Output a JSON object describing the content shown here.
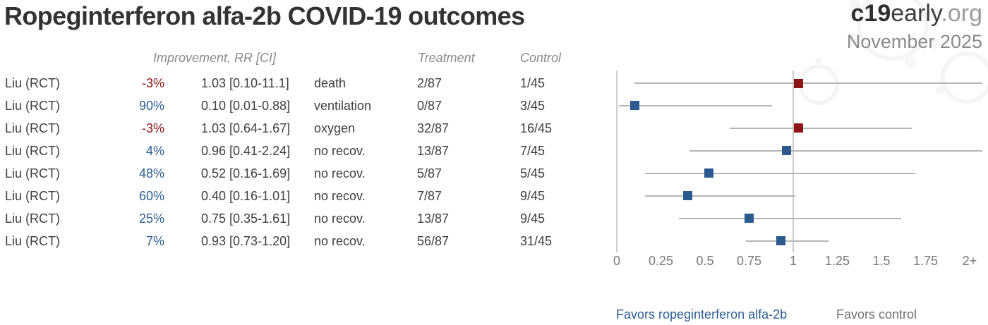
{
  "header": {
    "title": "Ropeginterferon alfa-2b COVID-19 outcomes",
    "logo_bold": "c19",
    "logo_regular": "early",
    "logo_suffix": ".org",
    "date": "November 2025"
  },
  "table": {
    "headers": {
      "improvement": "Improvement, RR [CI]",
      "treatment": "Treatment",
      "control": "Control"
    },
    "rows": [
      {
        "study": "Liu (RCT)",
        "improvement": "-3%",
        "rr_ci": "1.03 [0.10-11.1]",
        "outcome": "death",
        "treatment": "2/87",
        "control": "1/45",
        "color": "red"
      },
      {
        "study": "Liu (RCT)",
        "improvement": "90%",
        "rr_ci": "0.10 [0.01-0.88]",
        "outcome": "ventilation",
        "treatment": "0/87",
        "control": "3/45",
        "color": "blue"
      },
      {
        "study": "Liu (RCT)",
        "improvement": "-3%",
        "rr_ci": "1.03 [0.64-1.67]",
        "outcome": "oxygen",
        "treatment": "32/87",
        "control": "16/45",
        "color": "red"
      },
      {
        "study": "Liu (RCT)",
        "improvement": "4%",
        "rr_ci": "0.96 [0.41-2.24]",
        "outcome": "no recov.",
        "treatment": "13/87",
        "control": "7/45",
        "color": "blue"
      },
      {
        "study": "Liu (RCT)",
        "improvement": "48%",
        "rr_ci": "0.52 [0.16-1.69]",
        "outcome": "no recov.",
        "treatment": "5/87",
        "control": "5/45",
        "color": "blue"
      },
      {
        "study": "Liu (RCT)",
        "improvement": "60%",
        "rr_ci": "0.40 [0.16-1.01]",
        "outcome": "no recov.",
        "treatment": "7/87",
        "control": "9/45",
        "color": "blue"
      },
      {
        "study": "Liu (RCT)",
        "improvement": "25%",
        "rr_ci": "0.75 [0.35-1.61]",
        "outcome": "no recov.",
        "treatment": "13/87",
        "control": "9/45",
        "color": "blue"
      },
      {
        "study": "Liu (RCT)",
        "improvement": "7%",
        "rr_ci": "0.93 [0.73-1.20]",
        "outcome": "no recov.",
        "treatment": "56/87",
        "control": "31/45",
        "color": "blue"
      }
    ]
  },
  "chart_data": {
    "type": "forest",
    "title": "Ropeginterferon alfa-2b COVID-19 outcomes",
    "x_tick_labels": [
      "0",
      "0.25",
      "0.5",
      "0.75",
      "1",
      "1.25",
      "1.5",
      "1.75",
      "2+"
    ],
    "x_tick_values": [
      0,
      0.25,
      0.5,
      0.75,
      1,
      1.25,
      1.5,
      1.75,
      2
    ],
    "xlim": [
      0,
      2.07
    ],
    "reference_line_x": 1,
    "grid": false,
    "series": [
      {
        "study": "Liu (RCT)",
        "outcome": "death",
        "rr": 1.03,
        "ci_lower": 0.1,
        "ci_upper": 11.1,
        "improvement_pct": -3,
        "color": "red"
      },
      {
        "study": "Liu (RCT)",
        "outcome": "ventilation",
        "rr": 0.1,
        "ci_lower": 0.01,
        "ci_upper": 0.88,
        "improvement_pct": 90,
        "color": "blue"
      },
      {
        "study": "Liu (RCT)",
        "outcome": "oxygen",
        "rr": 1.03,
        "ci_lower": 0.64,
        "ci_upper": 1.67,
        "improvement_pct": -3,
        "color": "red"
      },
      {
        "study": "Liu (RCT)",
        "outcome": "no recov.",
        "rr": 0.96,
        "ci_lower": 0.41,
        "ci_upper": 2.24,
        "improvement_pct": 4,
        "color": "blue"
      },
      {
        "study": "Liu (RCT)",
        "outcome": "no recov.",
        "rr": 0.52,
        "ci_lower": 0.16,
        "ci_upper": 1.69,
        "improvement_pct": 48,
        "color": "blue"
      },
      {
        "study": "Liu (RCT)",
        "outcome": "no recov.",
        "rr": 0.4,
        "ci_lower": 0.16,
        "ci_upper": 1.01,
        "improvement_pct": 60,
        "color": "blue"
      },
      {
        "study": "Liu (RCT)",
        "outcome": "no recov.",
        "rr": 0.75,
        "ci_lower": 0.35,
        "ci_upper": 1.61,
        "improvement_pct": 25,
        "color": "blue"
      },
      {
        "study": "Liu (RCT)",
        "outcome": "no recov.",
        "rr": 0.93,
        "ci_lower": 0.73,
        "ci_upper": 1.2,
        "improvement_pct": 7,
        "color": "blue"
      }
    ],
    "favors_left": "Favors ropeginterferon alfa-2b",
    "favors_right": "Favors control",
    "legend_position": "bottom"
  },
  "colors": {
    "blue": "#2b5d92",
    "red": "#8b1414",
    "square_blue": "#2a5a8e",
    "square_red": "#8d1515",
    "ci_line": "#b6b6b6",
    "axis_line": "#cccccc",
    "body_text": "#3f3f3f",
    "muted_text": "#8a8a8a"
  }
}
